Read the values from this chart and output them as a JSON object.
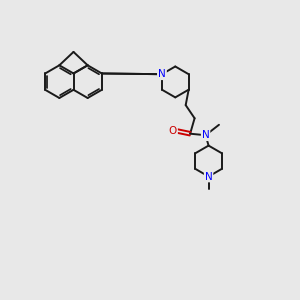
{
  "background_color": "#e8e8e8",
  "bond_color": "#1a1a1a",
  "nitrogen_color": "#0000ff",
  "oxygen_color": "#cc0000",
  "bond_width": 1.4,
  "figsize": [
    3.0,
    3.0
  ],
  "dpi": 100,
  "xlim": [
    0,
    10
  ],
  "ylim": [
    0,
    10
  ]
}
